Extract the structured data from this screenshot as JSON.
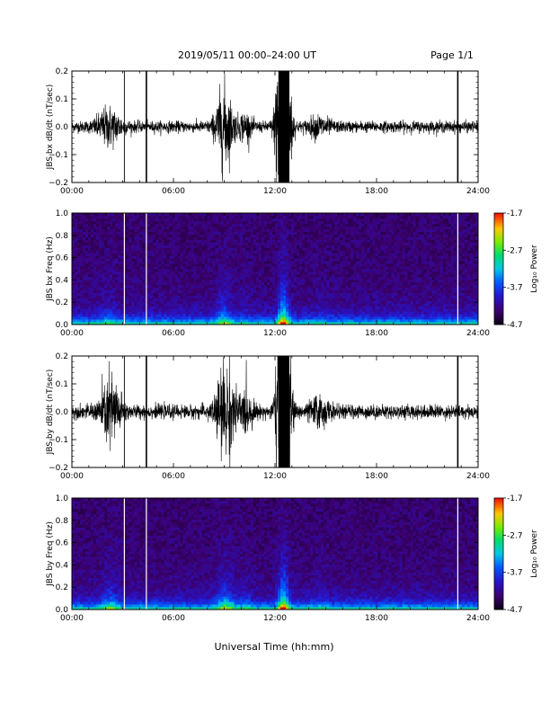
{
  "header": {
    "title": "2019/05/11  00:00–24:00 UT",
    "page": "Page 1/1"
  },
  "xaxis_label": "Universal Time (hh:mm)",
  "chart_data": [
    {
      "type": "line",
      "ylabel": "JBS bx dB/dt (nT/sec)",
      "xlim": [
        0,
        24
      ],
      "ylim": [
        -0.2,
        0.2
      ],
      "x_ticks": [
        "00:00",
        "06:00",
        "12:00",
        "18:00",
        "24:00"
      ],
      "y_ticks": [
        "0.2",
        "0.1",
        "0.0",
        "−0.1",
        "−0.2"
      ],
      "spikes_hours": [
        3.1,
        4.4,
        22.8
      ],
      "noise_amplitude_nT_s": 0.01,
      "bursts": [
        {
          "center": 2.2,
          "width": 0.7,
          "amp": 0.03
        },
        {
          "center": 9.0,
          "width": 0.5,
          "amp": 0.07
        },
        {
          "center": 10.2,
          "width": 0.4,
          "amp": 0.02
        },
        {
          "center": 12.5,
          "width": 0.35,
          "amp": 0.4
        },
        {
          "center": 14.6,
          "width": 0.6,
          "amp": 0.015
        }
      ]
    },
    {
      "type": "heatmap",
      "ylabel": "JBS bx Freq (Hz)",
      "xlim": [
        0,
        24
      ],
      "ylim": [
        0,
        1.0
      ],
      "x_ticks": [
        "00:00",
        "06:00",
        "12:00",
        "18:00",
        "24:00"
      ],
      "y_ticks": [
        "1.0",
        "0.8",
        "0.6",
        "0.4",
        "0.2",
        "0.0"
      ],
      "colorbar": {
        "label": "Log₁₀ Power",
        "ticks": [
          "-1.7",
          "-2.7",
          "-3.7",
          "-4.7"
        ],
        "range": [
          -4.7,
          -1.7
        ]
      }
    },
    {
      "type": "line",
      "ylabel": "JBS by dB/dt (nT/sec)",
      "xlim": [
        0,
        24
      ],
      "ylim": [
        -0.2,
        0.2
      ],
      "x_ticks": [
        "00:00",
        "06:00",
        "12:00",
        "18:00",
        "24:00"
      ],
      "y_ticks": [
        "0.2",
        "0.1",
        "0.0",
        "−0.1",
        "−0.2"
      ],
      "spikes_hours": [
        3.1,
        4.4,
        22.8
      ],
      "noise_amplitude_nT_s": 0.012,
      "bursts": [
        {
          "center": 2.3,
          "width": 0.6,
          "amp": 0.06
        },
        {
          "center": 9.1,
          "width": 0.6,
          "amp": 0.08
        },
        {
          "center": 10.3,
          "width": 0.4,
          "amp": 0.03
        },
        {
          "center": 12.5,
          "width": 0.35,
          "amp": 0.4
        },
        {
          "center": 14.6,
          "width": 0.6,
          "amp": 0.02
        }
      ]
    },
    {
      "type": "heatmap",
      "ylabel": "JBS by Freq (Hz)",
      "xlim": [
        0,
        24
      ],
      "ylim": [
        0,
        1.0
      ],
      "x_ticks": [
        "00:00",
        "06:00",
        "12:00",
        "18:00",
        "24:00"
      ],
      "y_ticks": [
        "1.0",
        "0.8",
        "0.6",
        "0.4",
        "0.2",
        "0.0"
      ],
      "colorbar": {
        "label": "Log₁₀ Power",
        "ticks": [
          "-1.7",
          "-2.7",
          "-3.7",
          "-4.7"
        ],
        "range": [
          -4.7,
          -1.7
        ]
      }
    }
  ]
}
